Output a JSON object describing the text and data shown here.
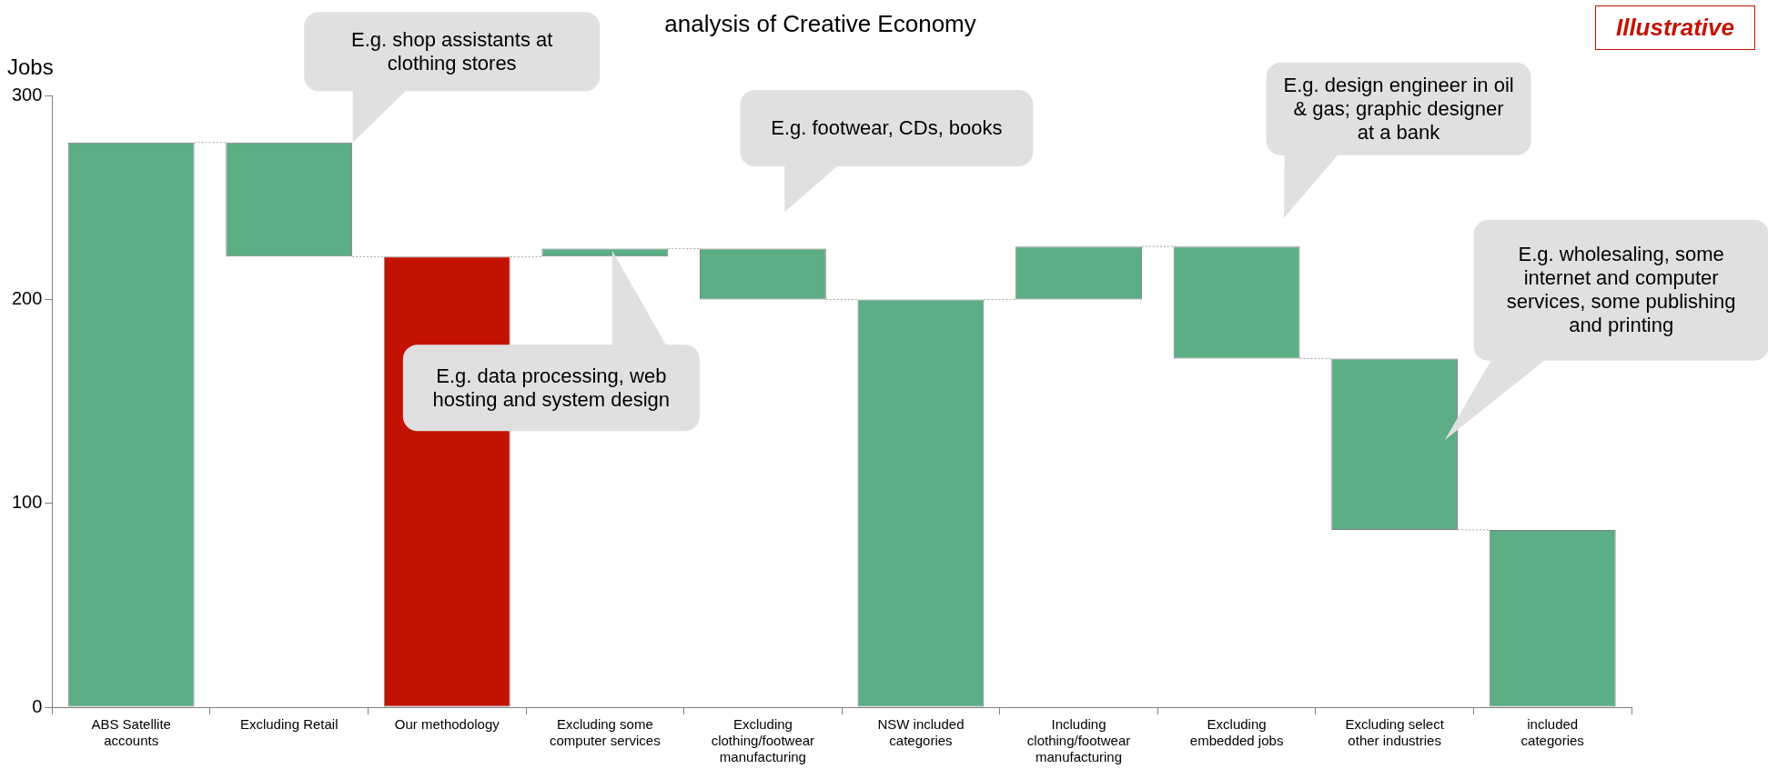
{
  "chart_data": {
    "type": "bar",
    "title": "analysis of Creative Economy",
    "ylabel": "Jobs",
    "categories": [
      "ABS Satellite accounts",
      "Excluding Retail",
      "Our methodology",
      "Excluding some computer services",
      "Excluding clothing/footwear manufacturing",
      "NSW included categories",
      "Including clothing/footwear manufacturing",
      "Excluding embedded jobs",
      "Excluding select other industries",
      "included categories"
    ],
    "values": [
      277,
      -56,
      221,
      4,
      -25,
      200,
      26,
      -55,
      -84,
      87
    ],
    "base": [
      0,
      277,
      0,
      221,
      225,
      0,
      200,
      226,
      171,
      0
    ],
    "colors": [
      "#5cae84",
      "#5cae84",
      "#c41200",
      "#5cae84",
      "#5cae84",
      "#5cae84",
      "#5cae84",
      "#5cae84",
      "#5cae84",
      "#5cae84"
    ],
    "ylim": [
      0,
      300
    ],
    "yticks": [
      0,
      100,
      200,
      300
    ],
    "grid": false,
    "legend": false,
    "annotations": [
      "E.g. shop assistants at clothing stores",
      "E.g. data processing, web hosting and system design",
      "E.g. footwear, CDs, books",
      "E.g. design engineer in oil & gas; graphic designer at a bank",
      "E.g. wholesaling, some internet and computer services, some publishing and printing",
      "Illustrative"
    ]
  }
}
